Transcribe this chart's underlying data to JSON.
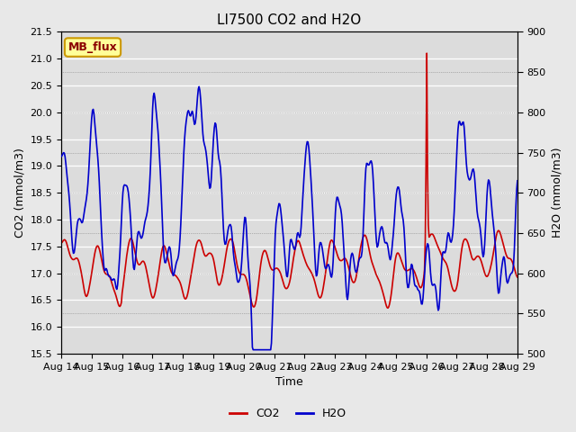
{
  "title": "LI7500 CO2 and H2O",
  "xlabel": "Time",
  "ylabel_left": "CO2 (mmol/m3)",
  "ylabel_right": "H2O (mmol/m3)",
  "co2_ylim": [
    15.5,
    21.5
  ],
  "h2o_ylim": [
    500,
    900
  ],
  "co2_yticks": [
    15.5,
    16.0,
    16.5,
    17.0,
    17.5,
    18.0,
    18.5,
    19.0,
    19.5,
    20.0,
    20.5,
    21.0,
    21.5
  ],
  "h2o_yticks": [
    500,
    550,
    600,
    650,
    700,
    750,
    800,
    850,
    900
  ],
  "xtick_labels": [
    "Aug 14",
    "Aug 15",
    "Aug 16",
    "Aug 17",
    "Aug 18",
    "Aug 19",
    "Aug 20",
    "Aug 21",
    "Aug 22",
    "Aug 23",
    "Aug 24",
    "Aug 25",
    "Aug 26",
    "Aug 27",
    "Aug 28",
    "Aug 29"
  ],
  "co2_color": "#cc0000",
  "h2o_color": "#0000cc",
  "fig_bg_color": "#e8e8e8",
  "plot_bg_color": "#dcdcdc",
  "grid_color": "#ffffff",
  "annotation_text": "MB_flux",
  "annotation_bg": "#ffff99",
  "annotation_border": "#cc9900",
  "annotation_text_color": "#8b0000",
  "title_fontsize": 11,
  "axis_label_fontsize": 9,
  "tick_fontsize": 8,
  "legend_fontsize": 9,
  "linewidth": 1.2,
  "n_points": 600
}
